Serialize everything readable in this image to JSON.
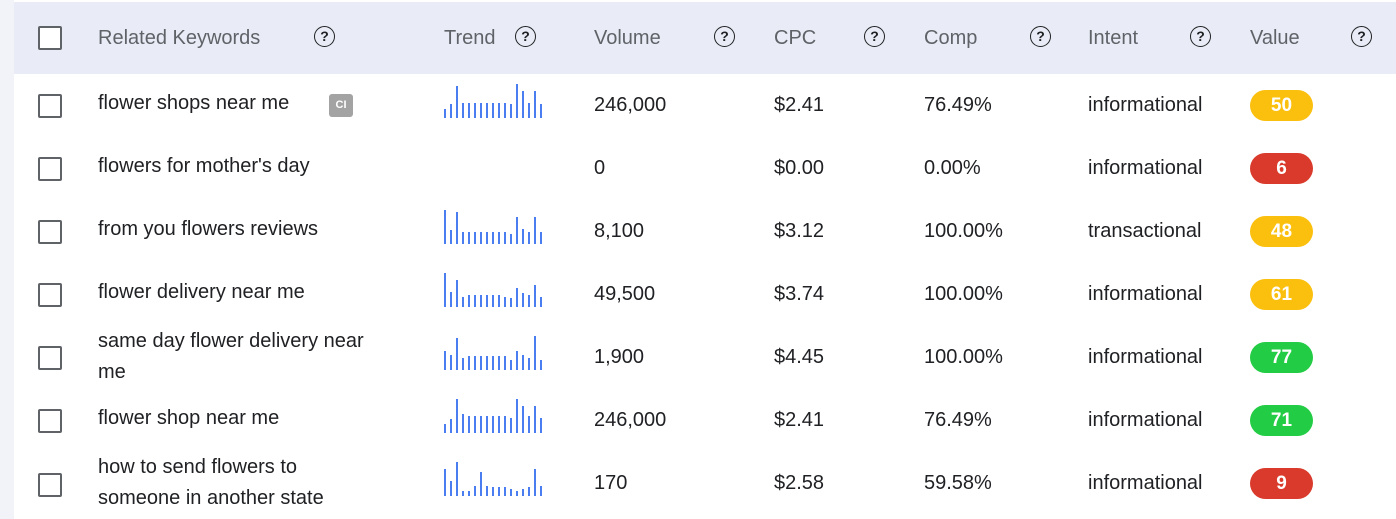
{
  "header": {
    "keyword_label": "Related Keywords",
    "trend_label": "Trend",
    "volume_label": "Volume",
    "cpc_label": "CPC",
    "comp_label": "Comp",
    "intent_label": "Intent",
    "value_label": "Value",
    "help_glyph": "?"
  },
  "colors": {
    "header_bg": "#e9ecf6",
    "trend_bar": "#4a7ef0",
    "value_high": "#22cc44",
    "value_mid": "#fbbf0e",
    "value_low": "#d93a2b"
  },
  "rows": [
    {
      "keyword": "flower shops near me",
      "badge": "CI",
      "trend": [
        0.25,
        0.4,
        0.95,
        0.45,
        0.45,
        0.45,
        0.45,
        0.45,
        0.45,
        0.45,
        0.45,
        0.4,
        1.0,
        0.8,
        0.45,
        0.8,
        0.4
      ],
      "volume": "246,000",
      "cpc": "$2.41",
      "comp": "76.49%",
      "intent": "informational",
      "value": "50",
      "value_color": "#fbbf0e"
    },
    {
      "keyword": "flowers for mother's day",
      "badge": "",
      "trend": [],
      "volume": "0",
      "cpc": "$0.00",
      "comp": "0.00%",
      "intent": "informational",
      "value": "6",
      "value_color": "#d93a2b"
    },
    {
      "keyword": "from you flowers reviews",
      "badge": "",
      "trend": [
        1.0,
        0.4,
        0.95,
        0.35,
        0.35,
        0.35,
        0.35,
        0.35,
        0.35,
        0.35,
        0.35,
        0.3,
        0.8,
        0.45,
        0.35,
        0.8,
        0.35
      ],
      "volume": "8,100",
      "cpc": "$3.12",
      "comp": "100.00%",
      "intent": "transactional",
      "value": "48",
      "value_color": "#fbbf0e"
    },
    {
      "keyword": "flower delivery near me",
      "badge": "",
      "trend": [
        1.0,
        0.45,
        0.8,
        0.3,
        0.35,
        0.35,
        0.35,
        0.35,
        0.35,
        0.35,
        0.3,
        0.25,
        0.55,
        0.4,
        0.35,
        0.65,
        0.3
      ],
      "volume": "49,500",
      "cpc": "$3.74",
      "comp": "100.00%",
      "intent": "informational",
      "value": "61",
      "value_color": "#fbbf0e"
    },
    {
      "keyword": "same day flower delivery near me",
      "badge": "",
      "trend": [
        0.55,
        0.45,
        0.95,
        0.35,
        0.4,
        0.4,
        0.4,
        0.4,
        0.4,
        0.4,
        0.4,
        0.3,
        0.55,
        0.45,
        0.35,
        1.0,
        0.3
      ],
      "volume": "1,900",
      "cpc": "$4.45",
      "comp": "100.00%",
      "intent": "informational",
      "value": "77",
      "value_color": "#22cc44"
    },
    {
      "keyword": "flower shop near me",
      "badge": "",
      "trend": [
        0.25,
        0.4,
        1.0,
        0.55,
        0.5,
        0.5,
        0.5,
        0.5,
        0.5,
        0.5,
        0.5,
        0.45,
        1.0,
        0.8,
        0.5,
        0.8,
        0.45
      ],
      "volume": "246,000",
      "cpc": "$2.41",
      "comp": "76.49%",
      "intent": "informational",
      "value": "71",
      "value_color": "#22cc44"
    },
    {
      "keyword": "how to send flowers to someone in another state",
      "badge": "",
      "trend": [
        0.8,
        0.45,
        1.0,
        0.15,
        0.15,
        0.3,
        0.7,
        0.3,
        0.25,
        0.25,
        0.25,
        0.2,
        0.15,
        0.2,
        0.25,
        0.8,
        0.3
      ],
      "volume": "170",
      "cpc": "$2.58",
      "comp": "59.58%",
      "intent": "informational",
      "value": "9",
      "value_color": "#d93a2b"
    }
  ]
}
